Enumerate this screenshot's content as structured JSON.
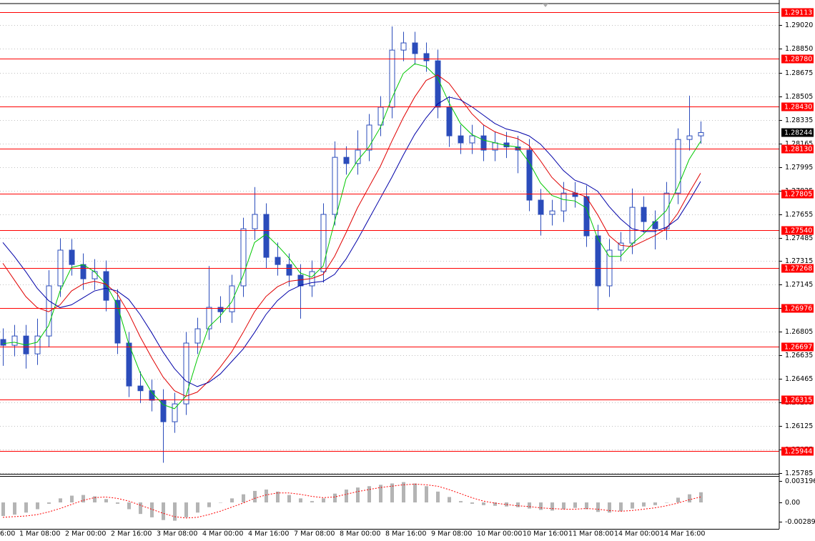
{
  "chart_data": {
    "type": "candlestick",
    "x_labels": [
      "6:00",
      "1 Mar 08:00",
      "2 Mar 00:00",
      "2 Mar 16:00",
      "3 Mar 08:00",
      "4 Mar 00:00",
      "4 Mar 16:00",
      "7 Mar 08:00",
      "8 Mar 00:00",
      "8 Mar 16:00",
      "9 Mar 08:00",
      "10 Mar 00:00",
      "10 Mar 16:00",
      "11 Mar 08:00",
      "14 Mar 00:00",
      "14 Mar 16:00"
    ],
    "candle_color": "#2b4cbb",
    "open": [
      1.2675,
      1.26708,
      1.26775,
      1.26646,
      1.26775,
      1.27137,
      1.27395,
      1.27291,
      1.27188,
      1.2724,
      1.27033,
      1.26724,
      1.26414,
      1.2638,
      1.26311,
      1.26156,
      1.26285,
      1.26724,
      1.26827,
      1.26982,
      1.2695,
      1.27137,
      1.27549,
      1.27653,
      1.27343,
      1.27291,
      1.27214,
      1.27137,
      1.2724,
      1.27653,
      1.28065,
      1.2802,
      1.28117,
      1.28298,
      1.28427,
      1.28839,
      1.28891,
      1.28814,
      1.28762,
      1.28427,
      1.2822,
      1.28169,
      1.2822,
      1.28117,
      1.28169,
      1.2814,
      1.28117,
      1.27756,
      1.27653,
      1.27678,
      1.27807,
      1.27782,
      1.27498,
      1.27137,
      1.27395,
      1.27446,
      1.27704,
      1.27601,
      1.27549,
      1.27807,
      1.28194,
      1.2822
    ],
    "high": [
      1.2683,
      1.26855,
      1.26855,
      1.269,
      1.2725,
      1.2748,
      1.27475,
      1.27371,
      1.2733,
      1.2732,
      1.27113,
      1.26804,
      1.2652,
      1.2646,
      1.26391,
      1.26365,
      1.26804,
      1.26907,
      1.2728,
      1.27062,
      1.27217,
      1.27629,
      1.2785,
      1.27733,
      1.2745,
      1.27371,
      1.27294,
      1.2732,
      1.27733,
      1.2818,
      1.28145,
      1.2826,
      1.28378,
      1.28507,
      1.2901,
      1.28971,
      1.28971,
      1.28894,
      1.28842,
      1.28507,
      1.283,
      1.283,
      1.283,
      1.28249,
      1.28249,
      1.2822,
      1.28197,
      1.27836,
      1.27758,
      1.27887,
      1.27887,
      1.27862,
      1.27578,
      1.27475,
      1.27526,
      1.2784,
      1.27784,
      1.27681,
      1.27887,
      1.28274,
      1.2851,
      1.28324
    ],
    "low": [
      1.2656,
      1.26628,
      1.2654,
      1.26566,
      1.26695,
      1.27057,
      1.27211,
      1.27108,
      1.27108,
      1.26953,
      1.26644,
      1.26334,
      1.2629,
      1.26231,
      1.2586,
      1.26076,
      1.26205,
      1.26644,
      1.26747,
      1.2687,
      1.2687,
      1.27057,
      1.27469,
      1.27263,
      1.27211,
      1.27134,
      1.269,
      1.27057,
      1.2716,
      1.27573,
      1.2794,
      1.2794,
      1.28037,
      1.28218,
      1.28347,
      1.28759,
      1.28734,
      1.28682,
      1.28347,
      1.2814,
      1.28089,
      1.28089,
      1.28037,
      1.28037,
      1.2806,
      1.2795,
      1.27676,
      1.275,
      1.27573,
      1.27598,
      1.27702,
      1.27418,
      1.2696,
      1.27057,
      1.27315,
      1.27366,
      1.27521,
      1.274,
      1.27469,
      1.27727,
      1.28114,
      1.28164
    ],
    "close": [
      1.26708,
      1.26775,
      1.26646,
      1.26775,
      1.27137,
      1.27395,
      1.27291,
      1.27188,
      1.2724,
      1.27033,
      1.26724,
      1.26414,
      1.2638,
      1.26311,
      1.26156,
      1.26285,
      1.26724,
      1.26827,
      1.26982,
      1.2695,
      1.27137,
      1.27549,
      1.27653,
      1.27343,
      1.27291,
      1.27214,
      1.27137,
      1.2724,
      1.27653,
      1.28065,
      1.2802,
      1.28117,
      1.28298,
      1.28427,
      1.28839,
      1.28891,
      1.28814,
      1.28762,
      1.28427,
      1.2822,
      1.28169,
      1.2822,
      1.28117,
      1.28169,
      1.2814,
      1.28117,
      1.27756,
      1.27653,
      1.27678,
      1.27807,
      1.27782,
      1.27498,
      1.27137,
      1.27395,
      1.27446,
      1.27704,
      1.27601,
      1.27549,
      1.27807,
      1.28194,
      1.2822,
      1.28244
    ],
    "ylim": [
      1.2578,
      1.29175
    ],
    "yticks": [
      {
        "value": 1.2902,
        "label": "1.29020"
      },
      {
        "value": 1.2885,
        "label": "1.28850"
      },
      1.28675,
      1.28505,
      1.28335,
      1.28165,
      1.27995,
      1.27825,
      1.27655,
      1.27485,
      1.27315,
      1.27145,
      1.26975,
      1.26805,
      1.26635,
      1.26465,
      1.26295,
      1.26125,
      1.25955,
      1.25785
    ],
    "grid": true,
    "moving_averages": [
      {
        "color": "#00c800",
        "values": [
          1.2672,
          1.2673,
          1.2671,
          1.2673,
          1.2685,
          1.271,
          1.2727,
          1.2729,
          1.2724,
          1.2715,
          1.27,
          1.2672,
          1.2651,
          1.2637,
          1.2628,
          1.2625,
          1.2634,
          1.2661,
          1.2684,
          1.2692,
          1.2702,
          1.2721,
          1.2745,
          1.2751,
          1.2743,
          1.2734,
          1.2723,
          1.272,
          1.2728,
          1.276,
          1.2791,
          1.2804,
          1.2814,
          1.2828,
          1.2849,
          1.2867,
          1.2874,
          1.2872,
          1.2864,
          1.2846,
          1.2831,
          1.2823,
          1.2819,
          1.2817,
          1.2815,
          1.2814,
          1.2803,
          1.2788,
          1.2779,
          1.2776,
          1.2775,
          1.277,
          1.2748,
          1.2735,
          1.2735,
          1.2744,
          1.2751,
          1.276,
          1.2768,
          1.2785,
          1.2805,
          1.2818
        ]
      },
      {
        "color": "#e00000",
        "values": [
          1.273,
          1.2718,
          1.2706,
          1.2698,
          1.2695,
          1.27,
          1.271,
          1.2715,
          1.2717,
          1.2715,
          1.2708,
          1.2694,
          1.2677,
          1.2662,
          1.2648,
          1.2638,
          1.2634,
          1.2637,
          1.2645,
          1.2655,
          1.2666,
          1.268,
          1.2695,
          1.2706,
          1.2713,
          1.2717,
          1.2718,
          1.2719,
          1.2722,
          1.2735,
          1.2752,
          1.277,
          1.2785,
          1.28,
          1.2818,
          1.2835,
          1.285,
          1.2862,
          1.2866,
          1.286,
          1.2849,
          1.2838,
          1.283,
          1.2825,
          1.2822,
          1.282,
          1.2815,
          1.2804,
          1.2792,
          1.2784,
          1.2781,
          1.2778,
          1.2765,
          1.275,
          1.2743,
          1.2742,
          1.2746,
          1.275,
          1.2755,
          1.2766,
          1.2781,
          1.2795
        ]
      },
      {
        "color": "#0000a8",
        "values": [
          1.2745,
          1.2735,
          1.2724,
          1.2712,
          1.2703,
          1.2698,
          1.27,
          1.2705,
          1.271,
          1.2712,
          1.271,
          1.2704,
          1.2693,
          1.268,
          1.2666,
          1.2654,
          1.2645,
          1.2641,
          1.2644,
          1.265,
          1.2659,
          1.2668,
          1.268,
          1.2693,
          1.2703,
          1.271,
          1.2714,
          1.2716,
          1.2717,
          1.2722,
          1.2733,
          1.2747,
          1.2762,
          1.2777,
          1.2792,
          1.2808,
          1.2823,
          1.2835,
          1.2845,
          1.285,
          1.2848,
          1.2843,
          1.2837,
          1.2831,
          1.2827,
          1.2825,
          1.2822,
          1.2816,
          1.2807,
          1.2797,
          1.279,
          1.2787,
          1.2782,
          1.2771,
          1.2762,
          1.2755,
          1.2753,
          1.2753,
          1.2756,
          1.2762,
          1.2775,
          1.2789
        ]
      }
    ],
    "levels": {
      "color": "#ff0000",
      "values": [
        1.29113,
        {
          "value": 1.2878,
          "label": "1.28780"
        },
        {
          "value": 1.2843,
          "label": "1.28430"
        },
        {
          "value": 1.2813,
          "label": "1.28130"
        },
        1.27805,
        {
          "value": 1.2754,
          "label": "1.27540"
        },
        1.27268,
        1.26976,
        1.26697,
        1.26315,
        1.25944
      ]
    },
    "last_price": 1.28244,
    "oscillator": {
      "ylim": [
        -0.0039,
        0.0038
      ],
      "yticks": [
        0.003196,
        {
          "value": 0,
          "label": "0.00"
        },
        -0.002893
      ],
      "histogram": {
        "color": "#b4b4b4",
        "values": [
          -0.002,
          -0.0018,
          -0.0015,
          -0.001,
          -0.0002,
          0.0006,
          0.001,
          0.0011,
          0.0009,
          0.0005,
          -0.0002,
          -0.001,
          -0.0017,
          -0.0022,
          -0.0026,
          -0.0027,
          -0.0022,
          -0.0015,
          -0.0007,
          0,
          0.0006,
          0.0012,
          0.0017,
          0.0019,
          0.0016,
          0.0011,
          0.0006,
          0.0002,
          0.0006,
          0.0013,
          0.0019,
          0.0022,
          0.0024,
          0.0026,
          0.0028,
          0.003,
          0.0028,
          0.0024,
          0.0016,
          0.0008,
          0.0002,
          -0.0002,
          -0.0004,
          -0.0005,
          -0.0006,
          -0.0007,
          -0.0009,
          -0.0011,
          -0.0012,
          -0.001,
          -0.0008,
          -0.001,
          -0.0014,
          -0.0015,
          -0.0013,
          -0.0009,
          -0.0006,
          -0.0004,
          0,
          0.0007,
          0.0012,
          0.0015
        ]
      },
      "signal": {
        "color": "#ff0000",
        "values": [
          -0.0022,
          -0.0021,
          -0.002,
          -0.0018,
          -0.0014,
          -0.0009,
          -0.0003,
          0.0003,
          0.0007,
          0.0008,
          0.0006,
          0.0002,
          -0.0004,
          -0.001,
          -0.0016,
          -0.0021,
          -0.0023,
          -0.0022,
          -0.0018,
          -0.0013,
          -0.0007,
          -0.0001,
          0.0006,
          0.0011,
          0.0014,
          0.0014,
          0.0012,
          0.0009,
          0.0007,
          0.0008,
          0.0012,
          0.0016,
          0.0019,
          0.0022,
          0.0024,
          0.0026,
          0.0027,
          0.0026,
          0.0024,
          0.0019,
          0.0013,
          0.0007,
          0.0002,
          -0.0001,
          -0.0003,
          -0.0005,
          -0.0006,
          -0.0008,
          -0.0009,
          -0.001,
          -0.001,
          -0.0009,
          -0.001,
          -0.0012,
          -0.0013,
          -0.0012,
          -0.001,
          -0.0008,
          -0.0005,
          -0.0001,
          0.0004,
          0.0008
        ]
      }
    }
  }
}
